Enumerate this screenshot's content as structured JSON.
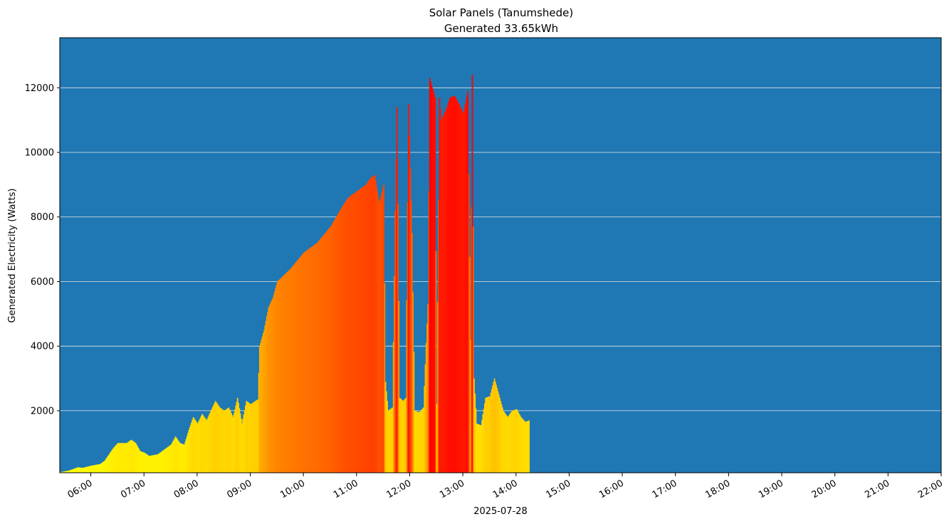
{
  "chart_data": {
    "type": "bar",
    "title": "Solar Panels (Tanumshede)",
    "subtitle": "Generated 33.65kWh",
    "xlabel": "2025-07-28",
    "ylabel": "Generated Electricity (Watts)",
    "x_unit": "time-of-day",
    "xlim": [
      "05:25",
      "22:00"
    ],
    "ylim": [
      80,
      13550
    ],
    "grid": {
      "y": true,
      "x": false
    },
    "colors": {
      "background": "#1f77b4",
      "grid": "#e8e8e8",
      "low": "#ffff00",
      "high": "#ff0000"
    },
    "color_scale_max": 12400,
    "x_ticks": [
      "06:00",
      "07:00",
      "08:00",
      "09:00",
      "10:00",
      "11:00",
      "12:00",
      "13:00",
      "14:00",
      "15:00",
      "16:00",
      "17:00",
      "18:00",
      "19:00",
      "20:00",
      "21:00",
      "22:00"
    ],
    "y_ticks": [
      2000,
      4000,
      6000,
      8000,
      10000,
      12000
    ],
    "curve_points": [
      [
        "05:25",
        100
      ],
      [
        "05:35",
        150
      ],
      [
        "05:45",
        250
      ],
      [
        "05:50",
        230
      ],
      [
        "06:00",
        300
      ],
      [
        "06:10",
        350
      ],
      [
        "06:15",
        450
      ],
      [
        "06:20",
        650
      ],
      [
        "06:25",
        850
      ],
      [
        "06:30",
        1000
      ],
      [
        "06:40",
        1000
      ],
      [
        "06:45",
        1100
      ],
      [
        "06:50",
        1000
      ],
      [
        "06:55",
        750
      ],
      [
        "07:00",
        700
      ],
      [
        "07:05",
        600
      ],
      [
        "07:15",
        650
      ],
      [
        "07:25",
        850
      ],
      [
        "07:30",
        950
      ],
      [
        "07:35",
        1200
      ],
      [
        "07:40",
        1000
      ],
      [
        "07:45",
        950
      ],
      [
        "07:50",
        1400
      ],
      [
        "07:55",
        1800
      ],
      [
        "08:00",
        1600
      ],
      [
        "08:05",
        1900
      ],
      [
        "08:10",
        1700
      ],
      [
        "08:15",
        2000
      ],
      [
        "08:20",
        2300
      ],
      [
        "08:25",
        2100
      ],
      [
        "08:30",
        2000
      ],
      [
        "08:35",
        2100
      ],
      [
        "08:40",
        1800
      ],
      [
        "08:45",
        2400
      ],
      [
        "08:50",
        1600
      ],
      [
        "08:55",
        2300
      ],
      [
        "09:00",
        2200
      ],
      [
        "09:05",
        2300
      ],
      [
        "09:08",
        2350
      ],
      [
        "09:10",
        4000
      ],
      [
        "09:15",
        4500
      ],
      [
        "09:20",
        5200
      ],
      [
        "09:25",
        5500
      ],
      [
        "09:30",
        6000
      ],
      [
        "09:45",
        6400
      ],
      [
        "10:00",
        6900
      ],
      [
        "10:15",
        7200
      ],
      [
        "10:30",
        7700
      ],
      [
        "10:45",
        8400
      ],
      [
        "10:50",
        8600
      ],
      [
        "11:00",
        8800
      ],
      [
        "11:10",
        9000
      ],
      [
        "11:15",
        9200
      ],
      [
        "11:20",
        9300
      ],
      [
        "11:25",
        8400
      ],
      [
        "11:30",
        9000
      ],
      [
        "11:32",
        2900
      ],
      [
        "11:35",
        2000
      ],
      [
        "11:40",
        2100
      ],
      [
        "11:43",
        8200
      ],
      [
        "11:45",
        11400
      ],
      [
        "11:48",
        2400
      ],
      [
        "11:52",
        2300
      ],
      [
        "11:55",
        2400
      ],
      [
        "11:58",
        11500
      ],
      [
        "12:02",
        7500
      ],
      [
        "12:05",
        2000
      ],
      [
        "12:10",
        1950
      ],
      [
        "12:15",
        2100
      ],
      [
        "12:18",
        4100
      ],
      [
        "12:20",
        5300
      ],
      [
        "12:22",
        12300
      ],
      [
        "12:25",
        12000
      ],
      [
        "12:28",
        11700
      ],
      [
        "12:30",
        2200
      ],
      [
        "12:33",
        11700
      ],
      [
        "12:35",
        11000
      ],
      [
        "12:40",
        11300
      ],
      [
        "12:45",
        11700
      ],
      [
        "12:50",
        11750
      ],
      [
        "12:55",
        11500
      ],
      [
        "13:00",
        11200
      ],
      [
        "13:05",
        11900
      ],
      [
        "13:08",
        4200
      ],
      [
        "13:10",
        12400
      ],
      [
        "13:12",
        3000
      ],
      [
        "13:15",
        1600
      ],
      [
        "13:20",
        1550
      ],
      [
        "13:25",
        2400
      ],
      [
        "13:30",
        2450
      ],
      [
        "13:35",
        3000
      ],
      [
        "13:40",
        2500
      ],
      [
        "13:45",
        2000
      ],
      [
        "13:50",
        1800
      ],
      [
        "13:55",
        2000
      ],
      [
        "14:00",
        2050
      ],
      [
        "14:05",
        1800
      ],
      [
        "14:10",
        1650
      ],
      [
        "14:14",
        1700
      ]
    ]
  }
}
